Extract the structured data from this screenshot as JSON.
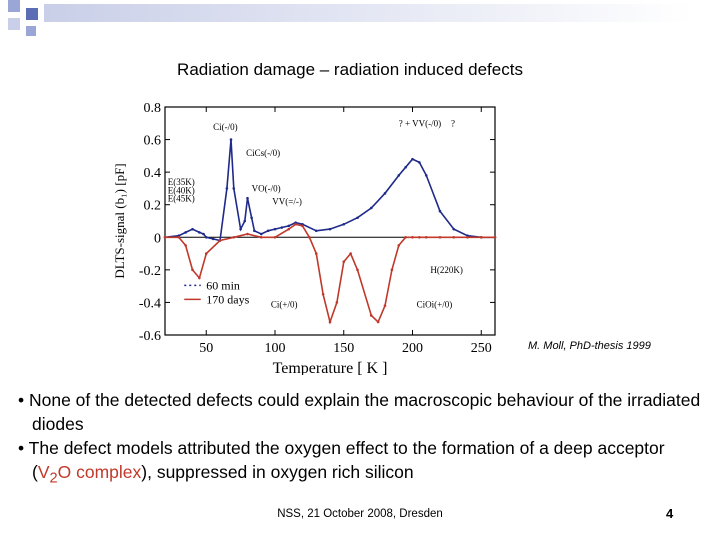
{
  "slide": {
    "title": "Radiation damage – radiation induced defects",
    "credit": "M. Moll, PhD-thesis 1999",
    "bullet1": "• None of the detected defects could explain the macroscopic behaviour of the irradiated diodes",
    "bullet2_pre": "• The defect models attributed the oxygen effect to the formation of a deep acceptor (",
    "bullet2_v": "V",
    "bullet2_sub": "2",
    "bullet2_o": "O complex",
    "bullet2_post": "), suppressed in oxygen rich silicon",
    "footer": "NSS, 21 October 2008, Dresden",
    "page": "4"
  },
  "colors": {
    "red_text": "#c0392b",
    "curve_blue": "#1f2a8a",
    "curve_red": "#c0392b",
    "deco_blue": "#5b6db5"
  },
  "chart_data": {
    "type": "line",
    "xlabel": "Temperature [ K ]",
    "ylabel": "DLTS-signal (b₁) [pF]",
    "xlim": [
      20,
      260
    ],
    "ylim": [
      -0.6,
      0.8
    ],
    "xticks": [
      "50",
      "100",
      "150",
      "200",
      "250"
    ],
    "yticks": [
      "-0.6",
      "-0.4",
      "-0.2",
      "0",
      "0.2",
      "0.4",
      "0.6",
      "0.8"
    ],
    "legend": [
      {
        "label": "60 min"
      },
      {
        "label": "170 days"
      }
    ],
    "annotations": [
      "Ci(-/0)",
      "CiCs(-/0)",
      "VO(-/0)",
      "VV(=/-)",
      "? + VV(-/0)",
      "?",
      "E(35K)",
      "E(40K)",
      "E(45K)",
      "H(220K)",
      "Ci(+/0)",
      "CiOi(+/0)"
    ],
    "series": [
      {
        "name": "60 min",
        "x": [
          20,
          30,
          35,
          40,
          45,
          48,
          50,
          55,
          60,
          65,
          68,
          70,
          75,
          78,
          80,
          83,
          85,
          90,
          95,
          100,
          105,
          110,
          115,
          120,
          130,
          140,
          150,
          160,
          170,
          180,
          190,
          195,
          200,
          205,
          210,
          220,
          230,
          240,
          250,
          260
        ],
        "y": [
          0.0,
          0.01,
          0.03,
          0.05,
          0.03,
          0.02,
          0.0,
          -0.01,
          -0.02,
          0.3,
          0.6,
          0.3,
          0.05,
          0.1,
          0.24,
          0.12,
          0.04,
          0.02,
          0.04,
          0.05,
          0.06,
          0.07,
          0.09,
          0.08,
          0.04,
          0.05,
          0.08,
          0.12,
          0.18,
          0.27,
          0.38,
          0.43,
          0.48,
          0.46,
          0.38,
          0.16,
          0.05,
          0.01,
          0.0,
          0.0
        ]
      },
      {
        "name": "170 days",
        "x": [
          20,
          30,
          35,
          40,
          45,
          50,
          60,
          70,
          80,
          90,
          100,
          110,
          115,
          120,
          125,
          130,
          135,
          140,
          145,
          150,
          155,
          160,
          170,
          175,
          180,
          185,
          190,
          195,
          200,
          205,
          210,
          220,
          230,
          240,
          250,
          260
        ],
        "y": [
          0.0,
          0.0,
          -0.05,
          -0.2,
          -0.25,
          -0.1,
          -0.02,
          0.0,
          0.02,
          0.0,
          0.0,
          0.05,
          0.08,
          0.07,
          0.0,
          -0.1,
          -0.35,
          -0.52,
          -0.4,
          -0.15,
          -0.1,
          -0.2,
          -0.48,
          -0.52,
          -0.42,
          -0.2,
          -0.05,
          0.0,
          0.0,
          0.0,
          0.0,
          0.0,
          0.0,
          0.0,
          0.0,
          0.0
        ]
      }
    ]
  }
}
